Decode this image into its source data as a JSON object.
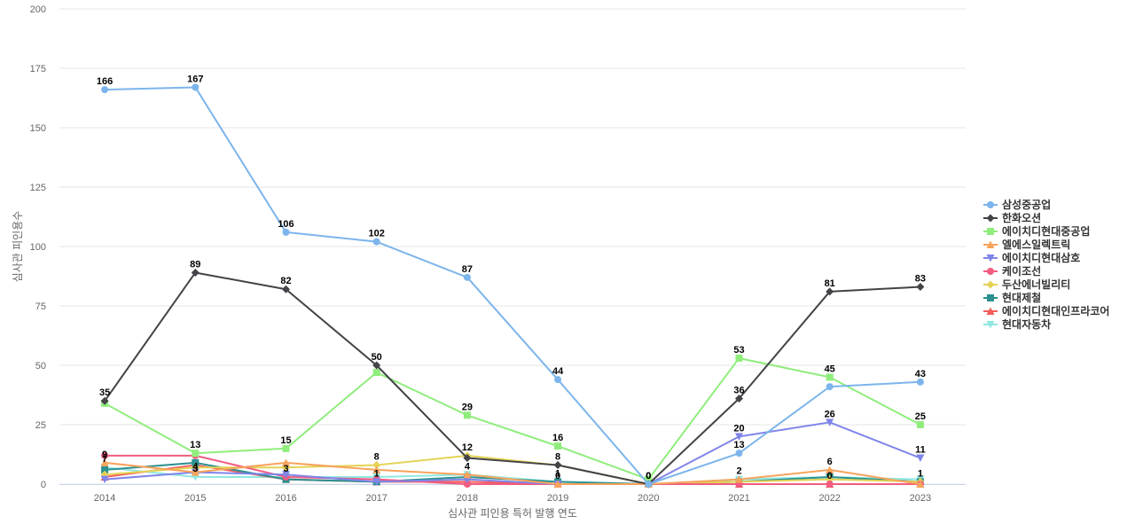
{
  "chart_data": {
    "type": "line",
    "title": "",
    "xlabel": "심사관 피인용 특허 발행 연도",
    "ylabel": "심사관 피인용수",
    "ylim": [
      0,
      200
    ],
    "yticks": [
      0,
      25,
      50,
      75,
      100,
      125,
      150,
      175,
      200
    ],
    "grid": true,
    "legend_position": "right",
    "categories": [
      "2014",
      "2015",
      "2016",
      "2017",
      "2018",
      "2019",
      "2020",
      "2021",
      "2022",
      "2023"
    ],
    "series": [
      {
        "name": "삼성중공업",
        "color": "#7cb5ec",
        "marker": "circle",
        "values": [
          166,
          167,
          106,
          102,
          87,
          44,
          0,
          13,
          41,
          43
        ],
        "labels": [
          true,
          true,
          true,
          true,
          true,
          true,
          false,
          true,
          false,
          true
        ]
      },
      {
        "name": "한화오션",
        "color": "#434348",
        "marker": "diamond",
        "values": [
          35,
          89,
          82,
          50,
          11,
          8,
          0,
          36,
          81,
          83
        ],
        "labels": [
          true,
          true,
          true,
          true,
          false,
          false,
          false,
          true,
          true,
          true
        ]
      },
      {
        "name": "에이치디현대중공업",
        "color": "#90ed7d",
        "marker": "square",
        "values": [
          34,
          13,
          15,
          47,
          29,
          16,
          2,
          53,
          45,
          25
        ],
        "labels": [
          false,
          true,
          true,
          false,
          true,
          true,
          false,
          true,
          true,
          true
        ]
      },
      {
        "name": "엘에스일렉트릭",
        "color": "#f7a35c",
        "marker": "triangle",
        "values": [
          9,
          5,
          9,
          6,
          4,
          0,
          0,
          2,
          6,
          0
        ],
        "labels": [
          false,
          false,
          false,
          false,
          false,
          false,
          false,
          true,
          true,
          false
        ]
      },
      {
        "name": "에이치디현대삼호",
        "color": "#8085e9",
        "marker": "triangle-down",
        "values": [
          2,
          5,
          4,
          1,
          2,
          0,
          0,
          20,
          26,
          11
        ],
        "labels": [
          false,
          false,
          false,
          false,
          false,
          false,
          false,
          true,
          true,
          true
        ]
      },
      {
        "name": "케이조선",
        "color": "#f15c80",
        "marker": "circle",
        "values": [
          12,
          12,
          3,
          2,
          0,
          0,
          0,
          0,
          0,
          0
        ],
        "labels": [
          false,
          false,
          false,
          false,
          false,
          false,
          false,
          false,
          false,
          false
        ]
      },
      {
        "name": "두산에너빌리티",
        "color": "#e4d354",
        "marker": "diamond",
        "values": [
          4,
          7,
          7,
          8,
          12,
          8,
          0,
          1,
          2,
          1
        ],
        "labels": [
          false,
          false,
          false,
          true,
          true,
          true,
          false,
          false,
          false,
          false
        ]
      },
      {
        "name": "현대제철",
        "color": "#2b908f",
        "marker": "square",
        "values": [
          6,
          9,
          2,
          1,
          3,
          1,
          0,
          1,
          3,
          1
        ],
        "labels": [
          false,
          false,
          false,
          false,
          false,
          false,
          false,
          false,
          false,
          true
        ]
      },
      {
        "name": "에이치디현대인프라코어",
        "color": "#f45b5b",
        "marker": "triangle",
        "values": [
          3,
          8,
          2,
          1,
          1,
          0,
          0,
          0,
          0,
          0
        ],
        "labels": [
          false,
          false,
          false,
          false,
          false,
          false,
          true,
          false,
          true,
          false
        ]
      },
      {
        "name": "현대자동차",
        "color": "#91e8e1",
        "marker": "triangle-down",
        "values": [
          7,
          3,
          3,
          3,
          4,
          1,
          0,
          2,
          3,
          2
        ],
        "labels": [
          true,
          true,
          false,
          false,
          true,
          true,
          false,
          false,
          false,
          false
        ]
      }
    ],
    "extra_labels": [
      {
        "category": "2014",
        "value": 9
      },
      {
        "category": "2015",
        "value": 4
      },
      {
        "category": "2016",
        "value": 3
      },
      {
        "category": "2017",
        "value": 1
      },
      {
        "category": "2019",
        "value": 0
      },
      {
        "category": "2020",
        "value": 0
      }
    ]
  }
}
